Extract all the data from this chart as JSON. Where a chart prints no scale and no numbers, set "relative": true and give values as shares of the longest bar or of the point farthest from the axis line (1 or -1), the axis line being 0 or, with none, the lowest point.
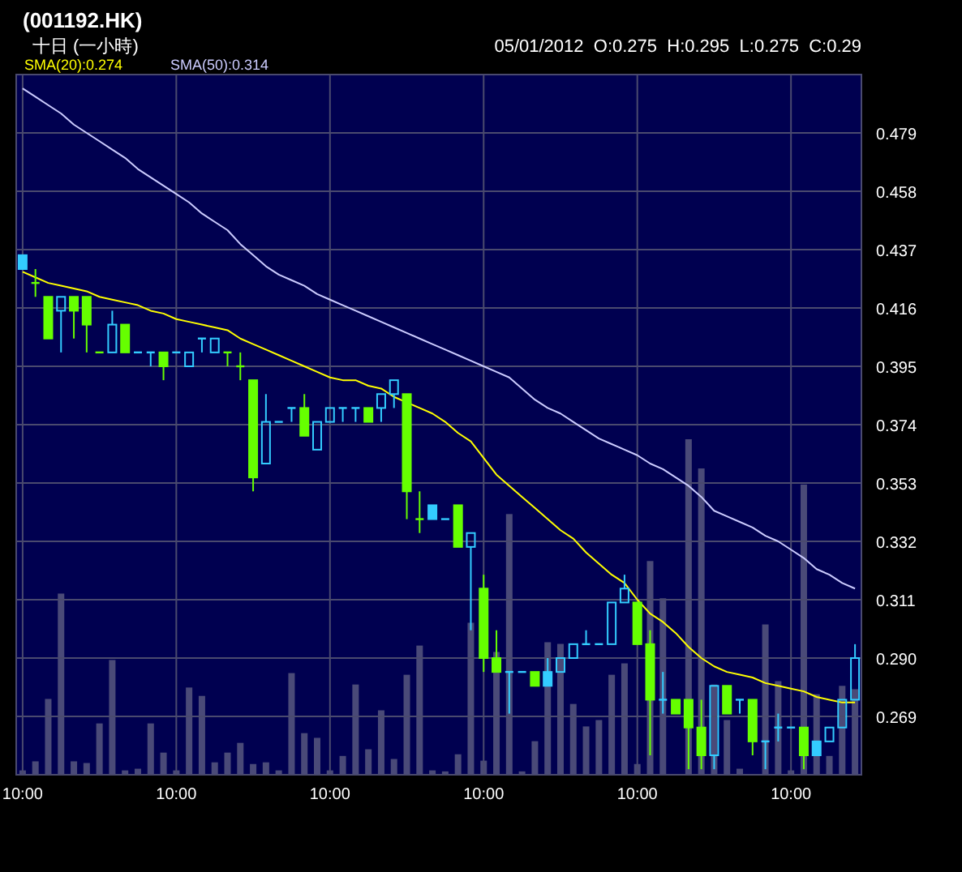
{
  "chart_data": [
    {
      "type": "candlestick",
      "title": "(001192.HK)",
      "subtitle": "十日 (一小時)",
      "annotations": [
        "05/01/2012  O:0.275  H:0.295  L:0.275  C:0.29"
      ],
      "categories": [
        "10:00",
        null,
        null,
        null,
        null,
        null,
        null,
        null,
        null,
        null,
        null,
        null,
        "10:00",
        null,
        null,
        null,
        null,
        null,
        null,
        null,
        null,
        null,
        null,
        null,
        "10:00",
        null,
        null,
        null,
        null,
        null,
        null,
        null,
        null,
        null,
        null,
        null,
        "10:00",
        null,
        null,
        null,
        null,
        null,
        null,
        null,
        null,
        null,
        null,
        null,
        "10:00",
        null,
        null,
        null,
        null,
        null,
        null,
        null,
        null,
        null,
        null,
        null,
        "10:00",
        null,
        null,
        null,
        null,
        null
      ],
      "ohlc": [
        [
          0.435,
          0.435,
          0.43,
          0.43
        ],
        [
          0.425,
          0.43,
          0.42,
          0.425
        ],
        [
          0.42,
          0.42,
          0.405,
          0.405
        ],
        [
          0.415,
          0.42,
          0.4,
          0.42
        ],
        [
          0.42,
          0.42,
          0.405,
          0.415
        ],
        [
          0.42,
          0.42,
          0.4,
          0.41
        ],
        [
          0.4,
          0.4,
          0.4,
          0.4
        ],
        [
          0.4,
          0.415,
          0.4,
          0.41
        ],
        [
          0.41,
          0.41,
          0.4,
          0.4
        ],
        [
          0.4,
          0.4,
          0.4,
          0.4
        ],
        [
          0.4,
          0.4,
          0.395,
          0.4
        ],
        [
          0.4,
          0.4,
          0.39,
          0.395
        ],
        [
          0.4,
          0.4,
          0.4,
          0.4
        ],
        [
          0.395,
          0.4,
          0.395,
          0.4
        ],
        [
          0.405,
          0.405,
          0.4,
          0.405
        ],
        [
          0.4,
          0.405,
          0.4,
          0.405
        ],
        [
          0.4,
          0.4,
          0.395,
          0.4
        ],
        [
          0.395,
          0.4,
          0.39,
          0.395
        ],
        [
          0.39,
          0.39,
          0.35,
          0.355
        ],
        [
          0.36,
          0.385,
          0.36,
          0.375
        ],
        [
          0.375,
          0.375,
          0.375,
          0.375
        ],
        [
          0.38,
          0.38,
          0.375,
          0.38
        ],
        [
          0.38,
          0.385,
          0.37,
          0.37
        ],
        [
          0.365,
          0.375,
          0.365,
          0.375
        ],
        [
          0.375,
          0.38,
          0.375,
          0.38
        ],
        [
          0.38,
          0.38,
          0.375,
          0.38
        ],
        [
          0.38,
          0.38,
          0.375,
          0.38
        ],
        [
          0.38,
          0.38,
          0.375,
          0.375
        ],
        [
          0.38,
          0.385,
          0.375,
          0.385
        ],
        [
          0.385,
          0.39,
          0.38,
          0.39
        ],
        [
          0.385,
          0.385,
          0.34,
          0.35
        ],
        [
          0.34,
          0.35,
          0.335,
          0.34
        ],
        [
          0.345,
          0.345,
          0.34,
          0.34
        ],
        [
          0.34,
          0.34,
          0.34,
          0.34
        ],
        [
          0.345,
          0.345,
          0.33,
          0.33
        ],
        [
          0.33,
          0.335,
          0.3,
          0.335
        ],
        [
          0.315,
          0.32,
          0.285,
          0.29
        ],
        [
          0.29,
          0.3,
          0.285,
          0.285
        ],
        [
          0.285,
          0.285,
          0.27,
          0.285
        ],
        [
          0.285,
          0.285,
          0.285,
          0.285
        ],
        [
          0.285,
          0.285,
          0.28,
          0.28
        ],
        [
          0.285,
          0.29,
          0.28,
          0.28
        ],
        [
          0.285,
          0.29,
          0.285,
          0.29
        ],
        [
          0.29,
          0.295,
          0.29,
          0.295
        ],
        [
          0.295,
          0.3,
          0.295,
          0.295
        ],
        [
          0.295,
          0.295,
          0.295,
          0.295
        ],
        [
          0.295,
          0.31,
          0.295,
          0.31
        ],
        [
          0.31,
          0.32,
          0.31,
          0.315
        ],
        [
          0.31,
          0.31,
          0.295,
          0.295
        ],
        [
          0.295,
          0.3,
          0.255,
          0.275
        ],
        [
          0.275,
          0.285,
          0.27,
          0.275
        ],
        [
          0.275,
          0.275,
          0.27,
          0.27
        ],
        [
          0.275,
          0.275,
          0.25,
          0.265
        ],
        [
          0.265,
          0.275,
          0.25,
          0.255
        ],
        [
          0.255,
          0.28,
          0.25,
          0.28
        ],
        [
          0.28,
          0.28,
          0.27,
          0.27
        ],
        [
          0.275,
          0.275,
          0.27,
          0.275
        ],
        [
          0.275,
          0.275,
          0.255,
          0.26
        ],
        [
          0.26,
          0.26,
          0.25,
          0.26
        ],
        [
          0.265,
          0.27,
          0.26,
          0.265
        ],
        [
          0.265,
          0.265,
          0.265,
          0.265
        ],
        [
          0.265,
          0.265,
          0.25,
          0.255
        ],
        [
          0.26,
          0.26,
          0.255,
          0.255
        ],
        [
          0.26,
          0.265,
          0.26,
          0.265
        ],
        [
          0.265,
          0.275,
          0.265,
          0.275
        ],
        [
          0.275,
          0.295,
          0.275,
          0.29
        ]
      ],
      "colors": [
        "#33ccff",
        "#66ff00",
        "#66ff00",
        "#33ccff",
        "#66ff00",
        "#66ff00",
        "#66ff00",
        "#33ccff",
        "#66ff00",
        "#33ccff",
        "#33ccff",
        "#66ff00",
        "#33ccff",
        "#33ccff",
        "#33ccff",
        "#33ccff",
        "#66ff00",
        "#66ff00",
        "#66ff00",
        "#33ccff",
        "#33ccff",
        "#33ccff",
        "#66ff00",
        "#33ccff",
        "#33ccff",
        "#33ccff",
        "#33ccff",
        "#66ff00",
        "#33ccff",
        "#33ccff",
        "#66ff00",
        "#66ff00",
        "#33ccff",
        "#33ccff",
        "#66ff00",
        "#33ccff",
        "#66ff00",
        "#66ff00",
        "#33ccff",
        "#33ccff",
        "#66ff00",
        "#33ccff",
        "#33ccff",
        "#33ccff",
        "#33ccff",
        "#33ccff",
        "#33ccff",
        "#33ccff",
        "#66ff00",
        "#66ff00",
        "#33ccff",
        "#66ff00",
        "#66ff00",
        "#66ff00",
        "#33ccff",
        "#66ff00",
        "#33ccff",
        "#66ff00",
        "#33ccff",
        "#33ccff",
        "#33ccff",
        "#66ff00",
        "#33ccff",
        "#33ccff",
        "#33ccff",
        "#33ccff"
      ],
      "series": [
        {
          "type": "line",
          "name": "SMA(20):0.274",
          "color": "#ffff00",
          "values": [
            0.429,
            0.427,
            0.425,
            0.424,
            0.423,
            0.422,
            0.42,
            0.419,
            0.418,
            0.417,
            0.415,
            0.414,
            0.412,
            0.411,
            0.41,
            0.409,
            0.408,
            0.405,
            0.403,
            0.401,
            0.399,
            0.397,
            0.395,
            0.393,
            0.391,
            0.39,
            0.39,
            0.388,
            0.387,
            0.384,
            0.382,
            0.38,
            0.378,
            0.375,
            0.371,
            0.368,
            0.362,
            0.356,
            0.352,
            0.348,
            0.344,
            0.34,
            0.336,
            0.333,
            0.328,
            0.324,
            0.32,
            0.317,
            0.311,
            0.306,
            0.303,
            0.299,
            0.294,
            0.29,
            0.287,
            0.285,
            0.284,
            0.283,
            0.281,
            0.28,
            0.279,
            0.278,
            0.276,
            0.275,
            0.274,
            0.274
          ]
        },
        {
          "type": "line",
          "name": "SMA(50):0.314",
          "color": "#ccccff",
          "values": [
            0.495,
            0.492,
            0.489,
            0.486,
            0.482,
            0.479,
            0.476,
            0.473,
            0.47,
            0.466,
            0.463,
            0.46,
            0.457,
            0.454,
            0.45,
            0.447,
            0.444,
            0.439,
            0.435,
            0.431,
            0.428,
            0.426,
            0.424,
            0.421,
            0.419,
            0.417,
            0.415,
            0.413,
            0.411,
            0.409,
            0.407,
            0.405,
            0.403,
            0.401,
            0.399,
            0.397,
            0.395,
            0.393,
            0.391,
            0.387,
            0.383,
            0.38,
            0.378,
            0.375,
            0.372,
            0.369,
            0.367,
            0.365,
            0.363,
            0.36,
            0.358,
            0.355,
            0.352,
            0.348,
            0.343,
            0.341,
            0.339,
            0.337,
            0.334,
            0.332,
            0.329,
            0.326,
            0.322,
            0.32,
            0.317,
            0.315
          ]
        }
      ],
      "ylim": [
        0.248,
        0.5
      ],
      "yticks": [
        0.479,
        0.458,
        0.437,
        0.416,
        0.395,
        0.374,
        0.353,
        0.332,
        0.311,
        {
          "value": 0.29,
          "label": "0.290"
        },
        0.269
      ],
      "grid": true,
      "legend": "top left"
    },
    {
      "type": "bar",
      "relative": true,
      "color": "#4a4a78",
      "categories": [
        null,
        null,
        null,
        null,
        null,
        null,
        null,
        null,
        null,
        null,
        null,
        null,
        null,
        null,
        null,
        null,
        null,
        null,
        null,
        null,
        null,
        null,
        null,
        null,
        null,
        null,
        null,
        null,
        null,
        null,
        null,
        null,
        null,
        null,
        null,
        null,
        null,
        null,
        null,
        null,
        null,
        null,
        null,
        null,
        null,
        null,
        null,
        null,
        null,
        null,
        null,
        null,
        null,
        null,
        null,
        null,
        null,
        null,
        null,
        null,
        null,
        null,
        null,
        null,
        null,
        null
      ],
      "values": [
        0.013,
        0.04,
        0.226,
        0.54,
        0.04,
        0.035,
        0.153,
        0.342,
        0.013,
        0.018,
        0.153,
        0.066,
        0.013,
        0.26,
        0.235,
        0.037,
        0.066,
        0.095,
        0.032,
        0.037,
        0.013,
        0.303,
        0.124,
        0.11,
        0.013,
        0.056,
        0.269,
        0.076,
        0.192,
        0.047,
        0.298,
        0.385,
        0.013,
        0.01,
        0.061,
        0.453,
        0.042,
        0.366,
        0.777,
        0.01,
        0.1,
        0.395,
        0.39,
        0.211,
        0.144,
        0.163,
        0.298,
        0.332,
        0.032,
        0.637,
        0.526,
        null,
        1,
        0.913,
        0.269,
        0.163,
        0.018,
        null,
        0.448,
        0.279,
        0.013,
        0.865,
        0.24,
        0.056,
        0.265,
        0.255
      ]
    }
  ]
}
